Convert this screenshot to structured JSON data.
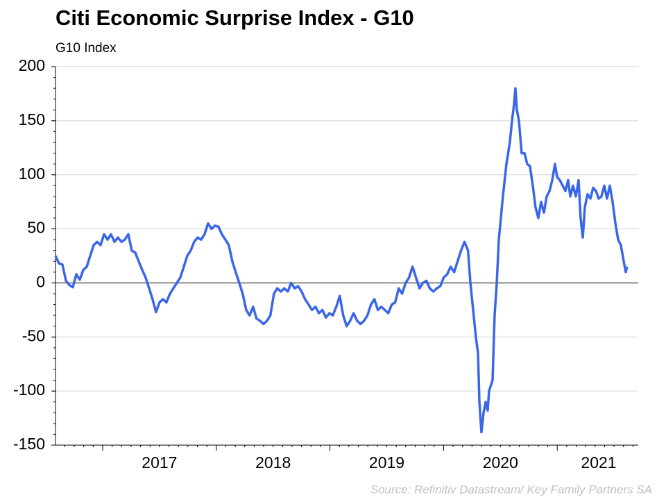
{
  "chart_data": {
    "type": "line",
    "title": "Citi Economic Surprise Index - G10",
    "subtitle": "G10 Index",
    "source": "Source: Refinitiv Datastream/ Key Family Partners SA",
    "xlim": [
      2016.585,
      2021.713
    ],
    "xticks": [
      {
        "value": 2017.5,
        "label": "2017"
      },
      {
        "value": 2018.5,
        "label": "2018"
      },
      {
        "value": 2019.5,
        "label": "2019"
      },
      {
        "value": 2020.5,
        "label": "2020"
      },
      {
        "value": 2021.365,
        "label": "2021"
      }
    ],
    "ylim": [
      -150,
      200
    ],
    "yticks": [
      -150,
      -100,
      -50,
      0,
      50,
      100,
      150,
      200
    ],
    "grid": true,
    "x": [
      2016.585,
      2016.616,
      2016.646,
      2016.677,
      2016.707,
      2016.738,
      2016.768,
      2016.799,
      2016.829,
      2016.86,
      2016.89,
      2016.921,
      2016.951,
      2016.982,
      2017.012,
      2017.043,
      2017.073,
      2017.104,
      2017.134,
      2017.165,
      2017.195,
      2017.226,
      2017.256,
      2017.287,
      2017.317,
      2017.348,
      2017.378,
      2017.409,
      2017.439,
      2017.47,
      2017.5,
      2017.531,
      2017.561,
      2017.592,
      2017.622,
      2017.653,
      2017.683,
      2017.714,
      2017.744,
      2017.775,
      2017.805,
      2017.836,
      2017.866,
      2017.897,
      2017.927,
      2017.958,
      2017.988,
      2018.019,
      2018.049,
      2018.08,
      2018.11,
      2018.141,
      2018.171,
      2018.202,
      2018.232,
      2018.263,
      2018.293,
      2018.324,
      2018.354,
      2018.385,
      2018.415,
      2018.446,
      2018.476,
      2018.507,
      2018.537,
      2018.568,
      2018.598,
      2018.629,
      2018.659,
      2018.69,
      2018.72,
      2018.751,
      2018.781,
      2018.812,
      2018.842,
      2018.873,
      2018.903,
      2018.934,
      2018.964,
      2018.995,
      2019.025,
      2019.056,
      2019.086,
      2019.117,
      2019.147,
      2019.178,
      2019.208,
      2019.239,
      2019.269,
      2019.3,
      2019.33,
      2019.361,
      2019.391,
      2019.422,
      2019.452,
      2019.483,
      2019.513,
      2019.544,
      2019.574,
      2019.605,
      2019.635,
      2019.666,
      2019.696,
      2019.727,
      2019.757,
      2019.788,
      2019.818,
      2019.849,
      2019.879,
      2019.91,
      2019.94,
      2019.971,
      2020.001,
      2020.032,
      2020.062,
      2020.093,
      2020.123,
      2020.154,
      2020.184,
      2020.215,
      2020.236,
      2020.26,
      2020.284,
      2020.303,
      2020.315,
      2020.333,
      2020.352,
      2020.37,
      2020.388,
      2020.4,
      2020.431,
      2020.449,
      2020.468,
      2020.486,
      2020.504,
      2020.522,
      2020.553,
      2020.583,
      2020.602,
      2020.62,
      2020.632,
      2020.645,
      2020.663,
      2020.687,
      2020.712,
      2020.736,
      2020.76,
      2020.785,
      2020.809,
      2020.834,
      2020.858,
      2020.883,
      2020.907,
      2020.932,
      2020.956,
      2020.98,
      2020.999,
      2021.023,
      2021.048,
      2021.072,
      2021.096,
      2021.115,
      2021.139,
      2021.164,
      2021.188,
      2021.206,
      2021.225,
      2021.243,
      2021.267,
      2021.292,
      2021.316,
      2021.341,
      2021.365,
      2021.389,
      2021.414,
      2021.438,
      2021.463,
      2021.487,
      2021.512,
      2021.536,
      2021.56,
      2021.585,
      2021.603,
      2021.615
    ],
    "series": [
      {
        "name": "G10 Index",
        "color": "#3a66e8",
        "values": [
          25,
          18,
          17,
          2,
          -2,
          -4,
          8,
          3,
          12,
          15,
          25,
          35,
          38,
          35,
          45,
          40,
          45,
          38,
          42,
          38,
          40,
          45,
          30,
          28,
          20,
          12,
          5,
          -5,
          -15,
          -27,
          -18,
          -15,
          -18,
          -10,
          -5,
          0,
          5,
          15,
          25,
          30,
          38,
          42,
          40,
          45,
          55,
          50,
          53,
          52,
          45,
          40,
          35,
          20,
          10,
          0,
          -10,
          -25,
          -30,
          -22,
          -33,
          -35,
          -38,
          -35,
          -30,
          -10,
          -5,
          -8,
          -5,
          -8,
          0,
          -5,
          -3,
          -8,
          -15,
          -20,
          -25,
          -22,
          -28,
          -25,
          -32,
          -28,
          -30,
          -22,
          -12,
          -30,
          -40,
          -35,
          -28,
          -35,
          -38,
          -35,
          -30,
          -20,
          -15,
          -25,
          -22,
          -25,
          -28,
          -20,
          -18,
          -5,
          -10,
          0,
          5,
          15,
          5,
          -5,
          0,
          2,
          -5,
          -8,
          -5,
          -3,
          5,
          8,
          15,
          10,
          20,
          30,
          38,
          30,
          0,
          -25,
          -50,
          -65,
          -110,
          -138,
          -120,
          -110,
          -118,
          -100,
          -90,
          -30,
          0,
          40,
          60,
          80,
          110,
          130,
          150,
          165,
          180,
          160,
          150,
          120,
          120,
          110,
          108,
          90,
          70,
          60,
          75,
          65,
          80,
          85,
          95,
          110,
          98,
          95,
          90,
          85,
          95,
          80,
          90,
          80,
          95,
          60,
          42,
          70,
          82,
          78,
          88,
          85,
          78,
          80,
          90,
          78,
          90,
          75,
          55,
          40,
          35,
          20,
          10,
          15
        ]
      }
    ]
  }
}
